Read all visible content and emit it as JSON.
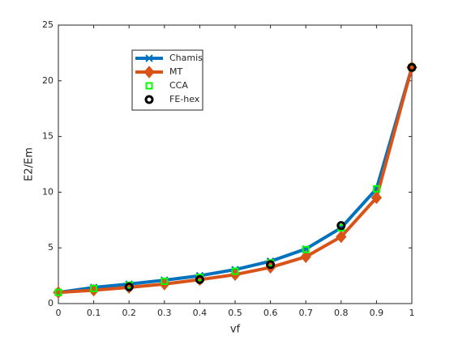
{
  "chart_data": {
    "type": "line",
    "xlabel": "vf",
    "ylabel": "E2/Em",
    "x": [
      0,
      0.1,
      0.2,
      0.3,
      0.4,
      0.5,
      0.6,
      0.7,
      0.8,
      0.9,
      1
    ],
    "xlim": [
      0,
      1
    ],
    "xticks": [
      0,
      0.1,
      0.2,
      0.3,
      0.4,
      0.5,
      0.6,
      0.7,
      0.8,
      0.9,
      1
    ],
    "ylim": [
      0,
      25
    ],
    "yticks": [
      0,
      5,
      10,
      15,
      20,
      25
    ],
    "grid": false,
    "legend_position": "upper left",
    "series": [
      {
        "name": "Chamis",
        "color": "#0072BD",
        "line": true,
        "marker": "x",
        "values": [
          1,
          1.45,
          1.75,
          2.1,
          2.5,
          3.05,
          3.8,
          4.9,
          6.8,
          10.3,
          21.2
        ]
      },
      {
        "name": "MT",
        "color": "#D95319",
        "line": true,
        "marker": "diamond",
        "values": [
          1,
          1.2,
          1.45,
          1.75,
          2.15,
          2.6,
          3.25,
          4.2,
          6.0,
          9.5,
          21.2
        ]
      },
      {
        "name": "CCA",
        "color": "#00FF00",
        "line": false,
        "marker": "square",
        "values": [
          1,
          1.35,
          1.65,
          2.0,
          2.35,
          2.9,
          3.65,
          4.85,
          6.8,
          10.3,
          21.2
        ]
      },
      {
        "name": "FE-hex",
        "color": "#000000",
        "line": false,
        "marker": "circle",
        "values": [
          null,
          null,
          1.5,
          null,
          2.15,
          null,
          3.5,
          null,
          7.0,
          null,
          21.2
        ]
      }
    ]
  }
}
